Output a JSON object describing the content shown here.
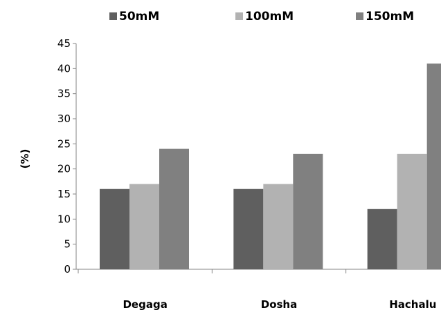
{
  "chart_data": {
    "type": "bar",
    "title": "",
    "xlabel": "",
    "ylabel": "(%)",
    "ylim": [
      0,
      45
    ],
    "yticks": [
      0,
      5,
      10,
      15,
      20,
      25,
      30,
      35,
      40,
      45
    ],
    "categories": [
      "Degaga",
      "Dosha",
      "Hachalu"
    ],
    "series": [
      {
        "name": "50mM",
        "values": [
          16,
          16,
          12
        ],
        "color": "#5f5f5f"
      },
      {
        "name": "100mM",
        "values": [
          17,
          17,
          23
        ],
        "color": "#b2b2b2"
      },
      {
        "name": "150mM",
        "values": [
          24,
          23,
          41
        ],
        "color": "#808080"
      }
    ],
    "legend_position": "top",
    "grid": false
  }
}
